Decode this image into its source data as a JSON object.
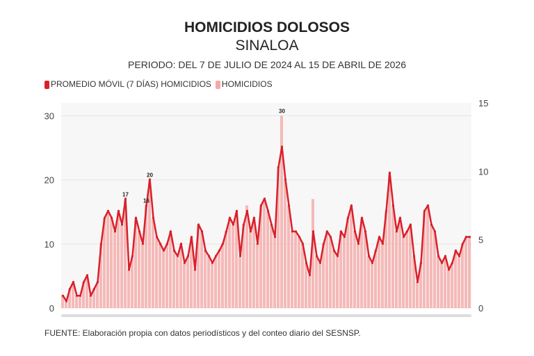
{
  "chart_data": {
    "type": "bar+line",
    "title": "HOMICIDIOS DOLOSOS",
    "subtitle": "SINALOA",
    "period": "PERIODO: DEL 7 DE JULIO DE 2024 AL 15 DE ABRIL DE 2026",
    "legend": [
      {
        "name": "PROMEDIO MÓVIL (7 DÍAS) HOMICIDIOS",
        "color": "#d9202a"
      },
      {
        "name": "HOMICIDIOS",
        "color": "#f4a9a8"
      }
    ],
    "legend_position": "top-left",
    "left_axis": {
      "ylim": [
        0,
        32
      ],
      "ticks": [
        "0",
        "10",
        "20",
        "30"
      ]
    },
    "right_axis": {
      "ylim": [
        0,
        15
      ],
      "ticks": [
        "0",
        "5",
        "10",
        "15"
      ]
    },
    "grid": true,
    "homicidios": [
      2,
      1,
      3,
      4,
      2,
      2,
      4,
      5,
      2,
      3,
      4,
      10,
      14,
      15,
      14,
      12,
      15,
      13,
      17,
      6,
      8,
      14,
      12,
      10,
      16,
      20,
      14,
      11,
      10,
      9,
      10,
      12,
      9,
      8,
      10,
      7,
      8,
      11,
      6,
      13,
      12,
      9,
      8,
      7,
      8,
      9,
      10,
      12,
      14,
      13,
      15,
      8,
      13,
      16,
      12,
      14,
      10,
      16,
      17,
      15,
      13,
      11,
      22,
      30,
      20,
      16,
      12,
      12,
      11,
      10,
      7,
      5,
      17,
      8,
      7,
      10,
      12,
      11,
      9,
      8,
      12,
      11,
      14,
      16,
      12,
      10,
      14,
      12,
      8,
      7,
      9,
      11,
      10,
      15,
      21,
      16,
      12,
      14,
      11,
      12,
      13,
      8,
      4,
      7,
      15,
      16,
      13,
      12,
      8,
      7,
      8,
      6,
      7,
      9,
      8,
      10,
      11,
      11
    ],
    "promedio_movil": [
      0.9,
      0.5,
      1.4,
      1.9,
      0.9,
      0.9,
      1.9,
      2.4,
      0.9,
      1.4,
      1.9,
      4.7,
      6.6,
      7.1,
      6.6,
      5.6,
      7.1,
      6.1,
      8.0,
      2.8,
      3.8,
      6.6,
      5.6,
      4.7,
      7.5,
      9.4,
      6.6,
      5.2,
      4.7,
      4.2,
      4.7,
      5.6,
      4.2,
      3.8,
      4.7,
      3.3,
      3.8,
      5.2,
      2.8,
      6.1,
      5.6,
      4.2,
      3.8,
      3.3,
      3.8,
      4.2,
      4.7,
      5.6,
      6.6,
      6.1,
      7.1,
      3.8,
      6.1,
      7.1,
      5.6,
      6.6,
      4.7,
      7.5,
      8.0,
      7.1,
      6.1,
      5.2,
      10.3,
      11.8,
      9.4,
      7.5,
      5.6,
      5.6,
      5.2,
      4.7,
      3.3,
      2.4,
      5.6,
      3.8,
      3.3,
      4.7,
      5.6,
      5.2,
      4.2,
      3.8,
      5.6,
      5.2,
      6.6,
      7.5,
      5.6,
      4.7,
      6.6,
      5.6,
      3.8,
      3.3,
      4.2,
      5.2,
      4.7,
      7.1,
      9.9,
      7.5,
      5.6,
      6.6,
      5.2,
      5.6,
      6.1,
      3.8,
      1.9,
      3.3,
      7.1,
      7.5,
      6.1,
      5.6,
      3.8,
      3.3,
      3.8,
      2.8,
      3.3,
      4.2,
      3.8,
      4.7,
      5.2,
      5.2
    ],
    "annotations": [
      "30",
      "20",
      "17",
      "16"
    ]
  },
  "source": "FUENTE: Elaboración propia con datos periodísticos y del conteo diario del SESNSP."
}
